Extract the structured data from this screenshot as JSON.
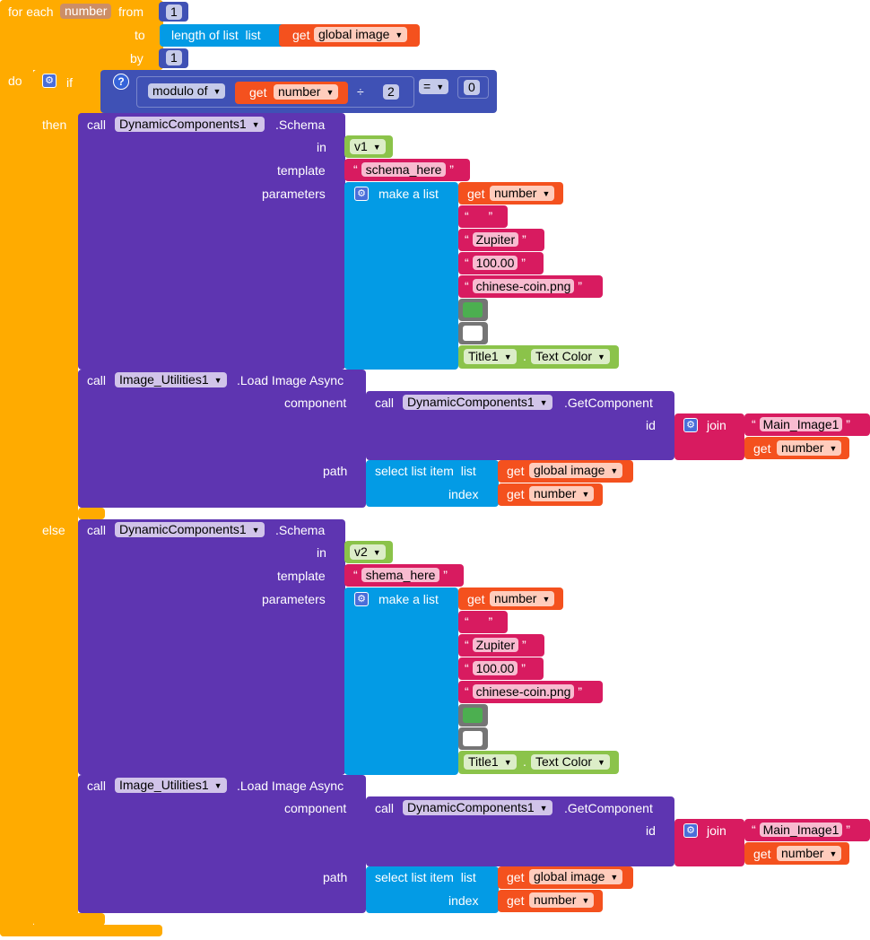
{
  "colors": {
    "control": "#ffab00",
    "math": "#3f51b5",
    "text": "#d81b60",
    "list": "#039be5",
    "variable": "#f4511e",
    "component": "#5e35b1",
    "green": "#8bc34a",
    "white": "#ffffff"
  },
  "loop": {
    "for_each": "for each",
    "var": "number",
    "from": "from",
    "to": "to",
    "by": "by",
    "do": "do",
    "from_value": "1",
    "by_value": "1",
    "length_of_list": "length of list",
    "list": "list",
    "get": "get",
    "global_image": "global image"
  },
  "cond": {
    "if": "if",
    "then": "then",
    "else": "else",
    "modulo_of": "modulo of",
    "get": "get",
    "var": "number",
    "divide": "÷",
    "divisor": "2",
    "eq": "=",
    "zero": "0"
  },
  "labels": {
    "call": "call",
    "in": "in",
    "template": "template",
    "parameters": "parameters",
    "make_a_list": "make a list",
    "get": "get",
    "number": "number",
    "component": "component",
    "id": "id",
    "join": "join",
    "path": "path",
    "select_list_item": "select list item",
    "list": "list",
    "index": "index",
    "global_image": "global image",
    "dot": ".",
    "q": "“",
    "qe": "”"
  },
  "then_branch": {
    "schema": {
      "component": "DynamicComponents1",
      "method": ".Schema",
      "in_value": "v1",
      "template_value": "schema_here",
      "params": [
        "",
        "Zupiter",
        "100.00",
        "chinese-coin.png"
      ],
      "color1": "#4caf50",
      "color2": "#ffffff",
      "title": "Title1",
      "prop": "Text Color"
    },
    "load": {
      "component": "Image_Utilities1",
      "method": ".Load Image Async",
      "getcomp_component": "DynamicComponents1",
      "getcomp_method": ".GetComponent",
      "join_text": "Main_Image1"
    }
  },
  "else_branch": {
    "schema": {
      "component": "DynamicComponents1",
      "method": ".Schema",
      "in_value": "v2",
      "template_value": "shema_here",
      "params": [
        "",
        "Zupiter",
        "100.00",
        "chinese-coin.png"
      ],
      "color1": "#4caf50",
      "color2": "#ffffff",
      "title": "Title1",
      "prop": "Text Color"
    },
    "load": {
      "component": "Image_Utilities1",
      "method": ".Load Image Async",
      "getcomp_component": "DynamicComponents1",
      "getcomp_method": ".GetComponent",
      "join_text": "Main_Image1"
    }
  }
}
